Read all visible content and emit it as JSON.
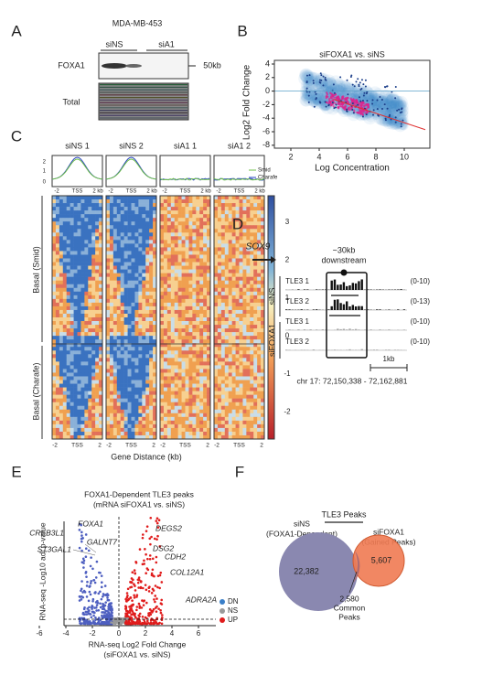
{
  "panel_a": {
    "letter": "A",
    "cell_line": "MDA-MB-453",
    "lanes": [
      "siNS",
      "siA1"
    ],
    "foxa1": "FOXA1",
    "marker": "50kb",
    "total": "Total"
  },
  "panel_b": {
    "letter": "B",
    "title": "siFOXA1 vs. siNS",
    "y_label": "Log2 Fold Change",
    "x_label": "Log Concentration",
    "yticks": [
      "4",
      "2",
      "0",
      "-2",
      "-4",
      "-6",
      "-8"
    ],
    "xticks": [
      "2",
      "4",
      "6",
      "8",
      "10"
    ]
  },
  "panel_c": {
    "letter": "C",
    "columns": [
      "siNS 1",
      "siNS 2",
      "siA1 1",
      "siA1 2"
    ],
    "profile_yticks": [
      "2",
      "1",
      "0"
    ],
    "profile_xticks": [
      "-2",
      "TSS",
      "2 kb"
    ],
    "legend": [
      "Smid",
      "Charafe"
    ],
    "colorbar_ticks": [
      "3",
      "2",
      "1",
      "0",
      "-1",
      "-2"
    ],
    "rows": [
      "Basal (Smid)",
      "Basal (Charafe)"
    ],
    "bottom_xticks": [
      "-2",
      "TSS",
      "2"
    ],
    "x_label": "Gene Distance (kb)"
  },
  "panel_d": {
    "letter": "D",
    "gene": "SOX9",
    "note": [
      "~30kb",
      "downstream"
    ],
    "groups": [
      "siNS",
      "siFOXA1"
    ],
    "tracks": [
      {
        "name": "TLE3 1",
        "range": "(0-10)"
      },
      {
        "name": "TLE3 2",
        "range": "(0-13)"
      },
      {
        "name": "TLE3 1",
        "range": "(0-10)"
      },
      {
        "name": "TLE3 2",
        "range": "(0-10)"
      }
    ],
    "scale": "1kb",
    "locus": "chr 17: 72,150,338 - 72,162,881"
  },
  "panel_e": {
    "letter": "E",
    "title": [
      "FOXA1-Dependent TLE3 peaks",
      "(mRNA siFOXA1 vs. siNS)"
    ],
    "genes": [
      "FOXA1",
      "CREB3L1",
      "GALNT7",
      "ST3GAL1",
      "DEGS2",
      "DSG2",
      "CDH2",
      "COL12A1",
      "ADRA2A"
    ],
    "y_label": "RNA-seq -Log10 adj p-value",
    "x_label": [
      "RNA-seq Log2 Fold Change",
      "(siFOXA1 vs. siNS)"
    ],
    "xticks": [
      "-6",
      "-4",
      "-2",
      "0",
      "2",
      "4",
      "6"
    ],
    "legend": [
      "DN",
      "NS",
      "UP"
    ]
  },
  "panel_f": {
    "letter": "F",
    "title": "TLE3 Peaks",
    "left": [
      "siNS",
      "(FOXA1-Dependent)"
    ],
    "right": [
      "siFOXA1",
      "(Gained Peaks)"
    ],
    "left_count": "22,382",
    "right_count": "5,607",
    "common": [
      "2,580",
      "Common",
      "Peaks"
    ]
  }
}
